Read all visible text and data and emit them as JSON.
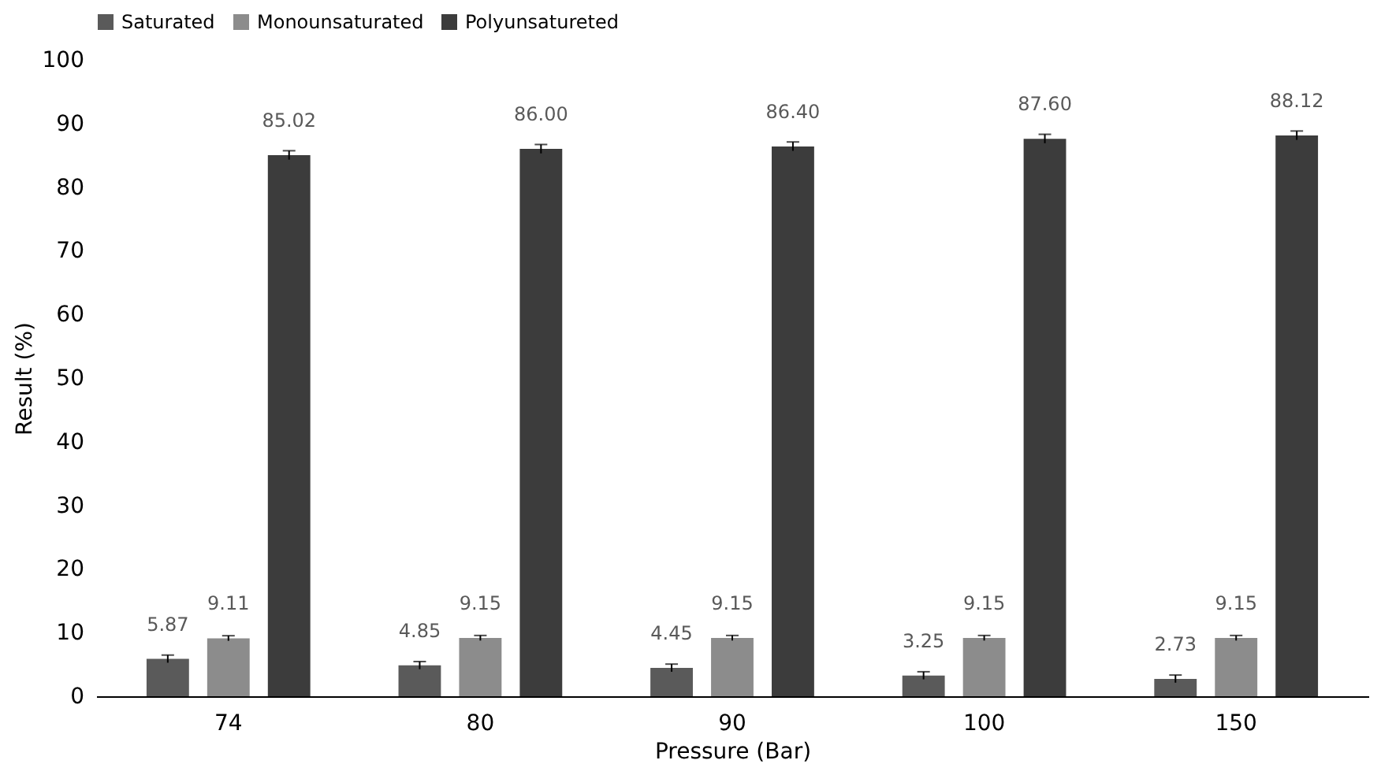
{
  "chart_data": {
    "type": "bar",
    "xlabel": "Pressure (Bar)",
    "ylabel": "Result (%)",
    "categories": [
      "74",
      "80",
      "90",
      "100",
      "150"
    ],
    "series": [
      {
        "name": "Saturated",
        "color": "#5a5a5a",
        "values": [
          5.87,
          4.85,
          4.45,
          3.25,
          2.73
        ],
        "errors": [
          0.6,
          0.6,
          0.6,
          0.6,
          0.6
        ],
        "value_labels": [
          "5.87",
          "4.85",
          "4.45",
          "3.25",
          "2.73"
        ]
      },
      {
        "name": "Monounsaturated",
        "color": "#8c8c8c",
        "values": [
          9.11,
          9.15,
          9.15,
          9.15,
          9.15
        ],
        "errors": [
          0.4,
          0.4,
          0.4,
          0.4,
          0.4
        ],
        "value_labels": [
          "9.11",
          "9.15",
          "9.15",
          "9.15",
          "9.15"
        ]
      },
      {
        "name": "Polyunsatureted",
        "color": "#3c3c3c",
        "values": [
          85.02,
          86.0,
          86.4,
          87.6,
          88.12
        ],
        "errors": [
          0.7,
          0.7,
          0.7,
          0.7,
          0.7
        ],
        "value_labels": [
          "85.02",
          "86.00",
          "86.40",
          "87.60",
          "88.12"
        ]
      }
    ],
    "ylim": [
      0,
      100
    ],
    "yticks": [
      0,
      10,
      20,
      30,
      40,
      50,
      60,
      70,
      80,
      90,
      100
    ],
    "grid": false,
    "legend": "top"
  }
}
